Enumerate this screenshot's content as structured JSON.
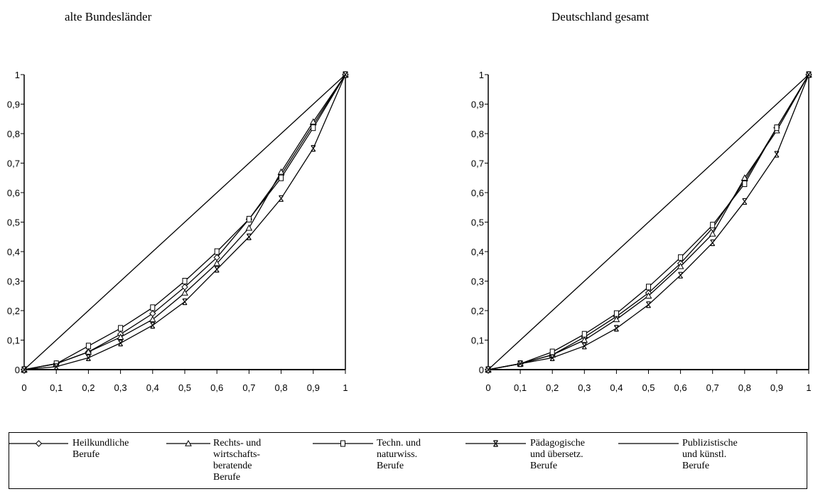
{
  "chart_data": [
    {
      "type": "line",
      "title": "alte Bundesländer",
      "xlim": [
        0,
        1
      ],
      "ylim": [
        0,
        1
      ],
      "x_ticks": [
        "0",
        "0,1",
        "0,2",
        "0,3",
        "0,4",
        "0,5",
        "0,6",
        "0,7",
        "0,8",
        "0,9",
        "1"
      ],
      "y_ticks": [
        "0",
        "0,1",
        "0,2",
        "0,3",
        "0,4",
        "0,5",
        "0,6",
        "0,7",
        "0,8",
        "0,9",
        "1"
      ],
      "x": [
        0,
        0.1,
        0.2,
        0.3,
        0.4,
        0.5,
        0.6,
        0.7,
        0.8,
        0.9,
        1
      ],
      "series": [
        {
          "name": "Heilkundliche Berufe",
          "marker": "diamond",
          "values": [
            0,
            0.02,
            0.06,
            0.12,
            0.19,
            0.28,
            0.38,
            0.51,
            0.66,
            0.83,
            1
          ]
        },
        {
          "name": "Rechts- und wirtschafts- beratende Berufe",
          "marker": "triangle",
          "values": [
            0,
            0.02,
            0.06,
            0.11,
            0.17,
            0.26,
            0.36,
            0.48,
            0.67,
            0.84,
            1
          ]
        },
        {
          "name": "Techn. und naturwiss. Berufe",
          "marker": "square",
          "values": [
            0,
            0.02,
            0.08,
            0.14,
            0.21,
            0.3,
            0.4,
            0.51,
            0.65,
            0.82,
            1
          ]
        },
        {
          "name": "Pädagogische und übersetz. Berufe",
          "marker": "xbox",
          "values": [
            0,
            0.01,
            0.04,
            0.09,
            0.15,
            0.23,
            0.34,
            0.45,
            0.58,
            0.75,
            1
          ]
        },
        {
          "name": "Publizistische und künstl. Berufe",
          "marker": "none",
          "values": [
            0,
            0.1,
            0.2,
            0.3,
            0.4,
            0.5,
            0.6,
            0.7,
            0.8,
            0.9,
            1
          ]
        }
      ]
    },
    {
      "type": "line",
      "title": "Deutschland gesamt",
      "xlim": [
        0,
        1
      ],
      "ylim": [
        0,
        1
      ],
      "x_ticks": [
        "0",
        "0,1",
        "0,2",
        "0,3",
        "0,4",
        "0,5",
        "0,6",
        "0,7",
        "0,8",
        "0,9",
        "1"
      ],
      "y_ticks": [
        "0",
        "0,1",
        "0,2",
        "0,3",
        "0,4",
        "0,5",
        "0,6",
        "0,7",
        "0,8",
        "0,9",
        "1"
      ],
      "x": [
        0,
        0.1,
        0.2,
        0.3,
        0.4,
        0.5,
        0.6,
        0.7,
        0.8,
        0.9,
        1
      ],
      "series": [
        {
          "name": "Heilkundliche Berufe",
          "marker": "diamond",
          "values": [
            0,
            0.02,
            0.05,
            0.11,
            0.18,
            0.26,
            0.36,
            0.48,
            0.64,
            0.82,
            1
          ]
        },
        {
          "name": "Rechts- und wirtschafts- beratende Berufe",
          "marker": "triangle",
          "values": [
            0,
            0.02,
            0.05,
            0.1,
            0.17,
            0.25,
            0.35,
            0.46,
            0.65,
            0.81,
            1
          ]
        },
        {
          "name": "Techn. und naturwiss. Berufe",
          "marker": "square",
          "values": [
            0,
            0.02,
            0.06,
            0.12,
            0.19,
            0.28,
            0.38,
            0.49,
            0.63,
            0.82,
            1
          ]
        },
        {
          "name": "Pädagogische und übersetz. Berufe",
          "marker": "xbox",
          "values": [
            0,
            0.02,
            0.04,
            0.08,
            0.14,
            0.22,
            0.32,
            0.43,
            0.57,
            0.73,
            1
          ]
        },
        {
          "name": "Publizistische und künstl. Berufe",
          "marker": "none",
          "values": [
            0,
            0.1,
            0.2,
            0.3,
            0.4,
            0.5,
            0.6,
            0.7,
            0.8,
            0.9,
            1
          ]
        }
      ]
    }
  ],
  "legend": [
    {
      "marker": "diamond",
      "label": "Heilkundliche\nBerufe"
    },
    {
      "marker": "triangle",
      "label": "Rechts- und\nwirtschafts-\nberatende\nBerufe"
    },
    {
      "marker": "square",
      "label": "Techn. und\nnaturwiss.\nBerufe"
    },
    {
      "marker": "xbox",
      "label": "Pädagogische\nund übersetz.\nBerufe"
    },
    {
      "marker": "none",
      "label": "Publizistische\nund künstl.\nBerufe"
    }
  ]
}
